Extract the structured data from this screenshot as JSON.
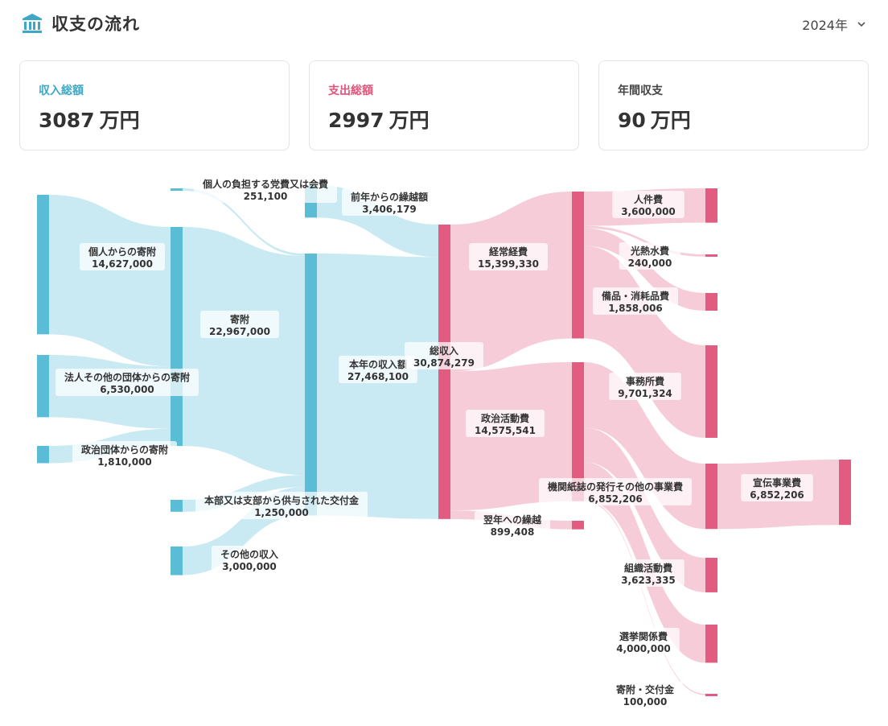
{
  "header": {
    "title": "収支の流れ",
    "year": "2024年",
    "icon": "bank-icon"
  },
  "summary": {
    "income": {
      "label": "収入総額",
      "value": "3087",
      "unit": "万円",
      "color": "#3ea7c6"
    },
    "expense": {
      "label": "支出総額",
      "value": "2997",
      "unit": "万円",
      "color": "#e0557c"
    },
    "balance": {
      "label": "年間収支",
      "value": "90",
      "unit": "万円",
      "color": "#444444"
    }
  },
  "chart_data": {
    "type": "sankey",
    "title": "収支の流れ",
    "colors": {
      "income_node": "#5bbcd5",
      "income_link": "#bfe6f0",
      "expense_node": "#e25c82",
      "expense_link": "#f4c3d2"
    },
    "nodes": [
      {
        "id": "kojin",
        "name": "個人からの寄附",
        "value": 14627000,
        "value_label": "14,627,000",
        "side": "income"
      },
      {
        "id": "houjin",
        "name": "法人その他の団体からの寄附",
        "value": 6530000,
        "value_label": "6,530,000",
        "side": "income"
      },
      {
        "id": "seiji",
        "name": "政治団体からの寄附",
        "value": 1810000,
        "value_label": "1,810,000",
        "side": "income"
      },
      {
        "id": "kaihi",
        "name": "個人の負担する党費又は会費",
        "value": 251100,
        "value_label": "251,100",
        "side": "income"
      },
      {
        "id": "kifu",
        "name": "寄附",
        "value": 22967000,
        "value_label": "22,967,000",
        "side": "income"
      },
      {
        "id": "koufu",
        "name": "本部又は支部から供与された交付金",
        "value": 1250000,
        "value_label": "1,250,000",
        "side": "income"
      },
      {
        "id": "sonota",
        "name": "その他の収入",
        "value": 3000000,
        "value_label": "3,000,000",
        "side": "income"
      },
      {
        "id": "kurikoshi",
        "name": "前年からの繰越額",
        "value": 3406179,
        "value_label": "3,406,179",
        "side": "income"
      },
      {
        "id": "honnen",
        "name": "本年の収入額",
        "value": 27468100,
        "value_label": "27,468,100",
        "side": "income"
      },
      {
        "id": "total",
        "name": "総収入",
        "value": 30874279,
        "value_label": "30,874,279",
        "side": "expense"
      },
      {
        "id": "keijo",
        "name": "経常経費",
        "value": 15399330,
        "value_label": "15,399,330",
        "side": "expense"
      },
      {
        "id": "seijikatsu",
        "name": "政治活動費",
        "value": 14575541,
        "value_label": "14,575,541",
        "side": "expense"
      },
      {
        "id": "yokunen",
        "name": "翌年への繰越",
        "value": 899408,
        "value_label": "899,408",
        "side": "expense"
      },
      {
        "id": "jinken",
        "name": "人件費",
        "value": 3600000,
        "value_label": "3,600,000",
        "side": "expense"
      },
      {
        "id": "kounetsu",
        "name": "光熱水費",
        "value": 240000,
        "value_label": "240,000",
        "side": "expense"
      },
      {
        "id": "bihin",
        "name": "備品・消耗品費",
        "value": 1858006,
        "value_label": "1,858,006",
        "side": "expense"
      },
      {
        "id": "jimusho",
        "name": "事務所費",
        "value": 9701324,
        "value_label": "9,701,324",
        "side": "expense"
      },
      {
        "id": "kikanshi",
        "name": "機関紙誌の発行その他の事業費",
        "value": 6852206,
        "value_label": "6,852,206",
        "side": "expense"
      },
      {
        "id": "soshiki",
        "name": "組織活動費",
        "value": 3623335,
        "value_label": "3,623,335",
        "side": "expense"
      },
      {
        "id": "senkyo",
        "name": "選挙関係費",
        "value": 4000000,
        "value_label": "4,000,000",
        "side": "expense"
      },
      {
        "id": "kifukoufu",
        "name": "寄附・交付金",
        "value": 100000,
        "value_label": "100,000",
        "side": "expense"
      },
      {
        "id": "senden",
        "name": "宣伝事業費",
        "value": 6852206,
        "value_label": "6,852,206",
        "side": "expense"
      }
    ],
    "links": [
      {
        "source": "kojin",
        "target": "kifu",
        "value": 14627000
      },
      {
        "source": "houjin",
        "target": "kifu",
        "value": 6530000
      },
      {
        "source": "seiji",
        "target": "kifu",
        "value": 1810000
      },
      {
        "source": "kaihi",
        "target": "honnen",
        "value": 251100
      },
      {
        "source": "kifu",
        "target": "honnen",
        "value": 22967000
      },
      {
        "source": "koufu",
        "target": "honnen",
        "value": 1250000
      },
      {
        "source": "sonota",
        "target": "honnen",
        "value": 3000000
      },
      {
        "source": "kurikoshi",
        "target": "total",
        "value": 3406179
      },
      {
        "source": "honnen",
        "target": "total",
        "value": 27468100
      },
      {
        "source": "total",
        "target": "keijo",
        "value": 15399330
      },
      {
        "source": "total",
        "target": "seijikatsu",
        "value": 14575541
      },
      {
        "source": "total",
        "target": "yokunen",
        "value": 899408
      },
      {
        "source": "keijo",
        "target": "jinken",
        "value": 3600000
      },
      {
        "source": "keijo",
        "target": "kounetsu",
        "value": 240000
      },
      {
        "source": "keijo",
        "target": "bihin",
        "value": 1858006
      },
      {
        "source": "keijo",
        "target": "jimusho",
        "value": 9701324
      },
      {
        "source": "seijikatsu",
        "target": "kikanshi",
        "value": 6852206
      },
      {
        "source": "seijikatsu",
        "target": "soshiki",
        "value": 3623335
      },
      {
        "source": "seijikatsu",
        "target": "senkyo",
        "value": 4000000
      },
      {
        "source": "seijikatsu",
        "target": "kifukoufu",
        "value": 100000
      },
      {
        "source": "kikanshi",
        "target": "senden",
        "value": 6852206
      }
    ]
  }
}
